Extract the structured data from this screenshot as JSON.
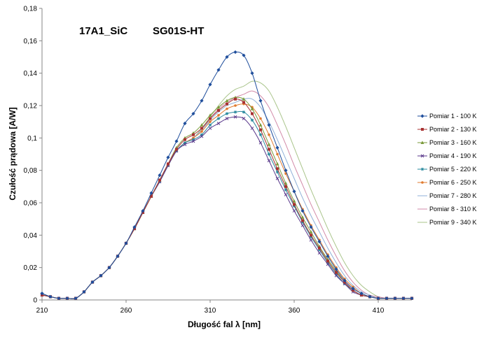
{
  "chart_data": {
    "type": "line",
    "title": "17A1_SiC",
    "subtitle": "SG01S-HT",
    "xlabel": "Długość fal   λ  [nm]",
    "ylabel": "Czułość prądowa   [A/W]",
    "xlim": [
      210,
      430
    ],
    "ylim": [
      0,
      0.18
    ],
    "xticks": [
      210,
      260,
      310,
      360,
      410
    ],
    "xtick_labels": [
      "210",
      "260",
      "310",
      "360",
      "410"
    ],
    "yticks": [
      0,
      0.02,
      0.04,
      0.06,
      0.08,
      0.1,
      0.12,
      0.14,
      0.16,
      0.18
    ],
    "ytick_labels": [
      "0",
      "0,02",
      "0,04",
      "0,06",
      "0,08",
      "0,1",
      "0,12",
      "0,14",
      "0,16",
      "0,18"
    ],
    "grid": false,
    "legend_position": "right",
    "x": [
      210,
      215,
      220,
      225,
      230,
      235,
      240,
      245,
      250,
      255,
      260,
      265,
      270,
      275,
      280,
      285,
      290,
      295,
      300,
      305,
      310,
      315,
      320,
      325,
      330,
      335,
      340,
      345,
      350,
      355,
      360,
      365,
      370,
      375,
      380,
      385,
      390,
      395,
      400,
      405,
      410,
      415,
      420,
      425,
      430
    ],
    "series": [
      {
        "name": "Pomiar 1 - 100 K",
        "color": "#1F4E9C",
        "marker": "diamond",
        "values": [
          0.004,
          0.002,
          0.001,
          0.001,
          0.001,
          0.005,
          0.011,
          0.015,
          0.02,
          0.027,
          0.035,
          0.045,
          0.055,
          0.066,
          0.077,
          0.088,
          0.098,
          0.109,
          0.115,
          0.123,
          0.133,
          0.142,
          0.15,
          0.153,
          0.151,
          0.14,
          0.123,
          0.108,
          0.094,
          0.08,
          0.067,
          0.055,
          0.045,
          0.036,
          0.027,
          0.019,
          0.012,
          0.007,
          0.004,
          0.002,
          0.001,
          0.001,
          0.001,
          0.001,
          0.001
        ]
      },
      {
        "name": "Pomiar 2 - 130 K",
        "color": "#A83232",
        "marker": "square",
        "values": [
          0.003,
          0.002,
          0.001,
          0.001,
          0.001,
          0.005,
          0.011,
          0.015,
          0.02,
          0.027,
          0.035,
          0.044,
          0.054,
          0.064,
          0.074,
          0.084,
          0.093,
          0.099,
          0.102,
          0.106,
          0.112,
          0.117,
          0.121,
          0.124,
          0.122,
          0.115,
          0.105,
          0.093,
          0.081,
          0.07,
          0.059,
          0.049,
          0.04,
          0.032,
          0.024,
          0.017,
          0.011,
          0.006,
          0.003,
          0.002,
          0.001,
          0.001,
          0.001,
          0.001,
          0.001
        ]
      },
      {
        "name": "Pomiar 3 - 160 K",
        "color": "#7A9A3A",
        "marker": "triangle",
        "values": [
          0.003,
          0.002,
          0.001,
          0.001,
          0.001,
          0.005,
          0.011,
          0.015,
          0.02,
          0.027,
          0.035,
          0.044,
          0.054,
          0.064,
          0.074,
          0.084,
          0.094,
          0.1,
          0.103,
          0.108,
          0.114,
          0.119,
          0.123,
          0.125,
          0.124,
          0.118,
          0.108,
          0.096,
          0.084,
          0.072,
          0.061,
          0.051,
          0.042,
          0.033,
          0.025,
          0.018,
          0.011,
          0.006,
          0.003,
          0.002,
          0.001,
          0.001,
          0.001,
          0.001,
          0.001
        ]
      },
      {
        "name": "Pomiar 4 - 190 K",
        "color": "#5B3A8C",
        "marker": "x",
        "values": [
          0.003,
          0.002,
          0.001,
          0.001,
          0.001,
          0.005,
          0.011,
          0.015,
          0.02,
          0.027,
          0.035,
          0.044,
          0.054,
          0.064,
          0.073,
          0.083,
          0.092,
          0.096,
          0.098,
          0.101,
          0.106,
          0.109,
          0.112,
          0.113,
          0.112,
          0.106,
          0.097,
          0.086,
          0.075,
          0.065,
          0.055,
          0.046,
          0.037,
          0.029,
          0.022,
          0.015,
          0.01,
          0.005,
          0.003,
          0.002,
          0.001,
          0.001,
          0.001,
          0.001,
          0.001
        ]
      },
      {
        "name": "Pomiar 5 - 220 K",
        "color": "#2A8A9E",
        "marker": "star",
        "values": [
          0.004,
          0.002,
          0.001,
          0.001,
          0.001,
          0.005,
          0.011,
          0.015,
          0.02,
          0.027,
          0.035,
          0.044,
          0.054,
          0.064,
          0.073,
          0.083,
          0.092,
          0.097,
          0.099,
          0.102,
          0.108,
          0.112,
          0.115,
          0.116,
          0.116,
          0.111,
          0.102,
          0.09,
          0.079,
          0.068,
          0.058,
          0.048,
          0.039,
          0.031,
          0.023,
          0.016,
          0.01,
          0.006,
          0.003,
          0.002,
          0.001,
          0.001,
          0.001,
          0.001,
          0.001
        ]
      },
      {
        "name": "Pomiar 6 - 250 K",
        "color": "#E07B30",
        "marker": "circle",
        "values": [
          0.003,
          0.002,
          0.001,
          0.001,
          0.001,
          0.005,
          0.011,
          0.015,
          0.02,
          0.027,
          0.035,
          0.044,
          0.054,
          0.064,
          0.074,
          0.083,
          0.092,
          0.097,
          0.1,
          0.104,
          0.11,
          0.114,
          0.118,
          0.12,
          0.121,
          0.119,
          0.112,
          0.102,
          0.09,
          0.078,
          0.067,
          0.056,
          0.046,
          0.037,
          0.028,
          0.02,
          0.013,
          0.008,
          0.004,
          0.002,
          0.001,
          0.001,
          0.001,
          0.001,
          0.001
        ]
      },
      {
        "name": "Pomiar 7 - 280 K",
        "color": "#8FB0D8",
        "marker": "none",
        "values": [
          0.003,
          0.002,
          0.001,
          0.001,
          0.001,
          0.005,
          0.011,
          0.015,
          0.02,
          0.027,
          0.035,
          0.044,
          0.054,
          0.064,
          0.073,
          0.083,
          0.092,
          0.097,
          0.1,
          0.105,
          0.111,
          0.116,
          0.12,
          0.122,
          0.124,
          0.124,
          0.119,
          0.11,
          0.099,
          0.087,
          0.075,
          0.063,
          0.052,
          0.042,
          0.032,
          0.023,
          0.015,
          0.009,
          0.005,
          0.003,
          0.001,
          0.001,
          0.001,
          0.001,
          0.001
        ]
      },
      {
        "name": "Pomiar 8 - 310 K",
        "color": "#D28AA8",
        "marker": "none",
        "values": [
          0.003,
          0.002,
          0.001,
          0.001,
          0.001,
          0.005,
          0.011,
          0.015,
          0.02,
          0.027,
          0.035,
          0.044,
          0.054,
          0.064,
          0.073,
          0.083,
          0.092,
          0.097,
          0.1,
          0.105,
          0.112,
          0.118,
          0.122,
          0.125,
          0.127,
          0.129,
          0.126,
          0.119,
          0.108,
          0.096,
          0.083,
          0.071,
          0.059,
          0.048,
          0.037,
          0.027,
          0.018,
          0.011,
          0.006,
          0.003,
          0.002,
          0.001,
          0.001,
          0.001,
          0.001
        ]
      },
      {
        "name": "Pomiar 9 - 340 K",
        "color": "#A9C48A",
        "marker": "none",
        "values": [
          0.003,
          0.002,
          0.001,
          0.001,
          0.001,
          0.005,
          0.011,
          0.015,
          0.02,
          0.027,
          0.035,
          0.044,
          0.054,
          0.064,
          0.073,
          0.083,
          0.092,
          0.097,
          0.1,
          0.106,
          0.113,
          0.12,
          0.126,
          0.13,
          0.132,
          0.135,
          0.134,
          0.129,
          0.119,
          0.107,
          0.094,
          0.081,
          0.068,
          0.056,
          0.044,
          0.033,
          0.023,
          0.015,
          0.009,
          0.005,
          0.002,
          0.001,
          0.001,
          0.001,
          0.001
        ]
      }
    ]
  }
}
